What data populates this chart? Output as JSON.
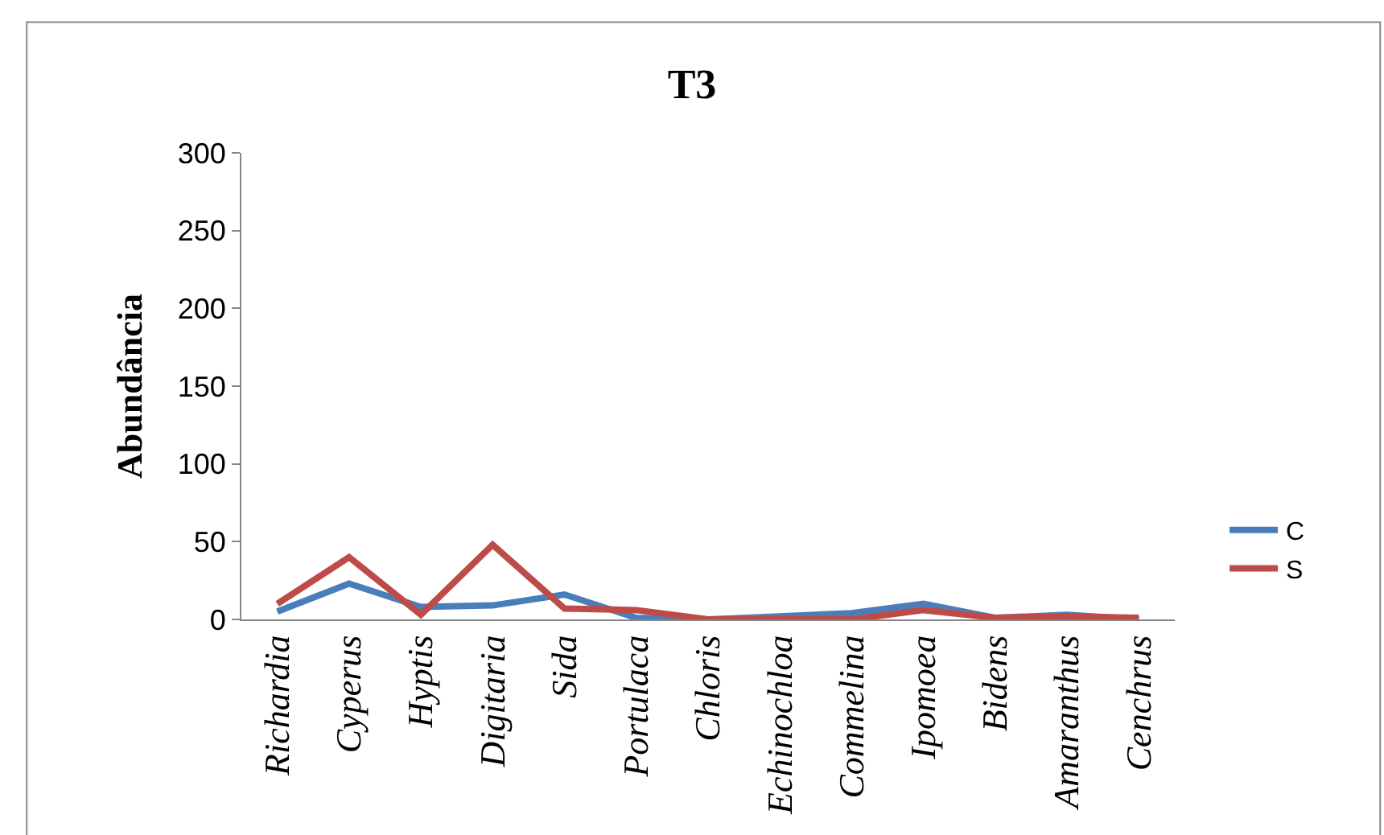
{
  "chart_data": {
    "type": "line",
    "title": "T3",
    "ylabel": "Abundância",
    "categories": [
      "Richardia",
      "Cyperus",
      "Hyptis",
      "Digitaria",
      "Sida",
      "Portulaca",
      "Chloris",
      "Echinochloa",
      "Commelina",
      "Ipomoea",
      "Bidens",
      "Amaranthus",
      "Cenchrus"
    ],
    "series": [
      {
        "name": "C",
        "color": "#4a7ebb",
        "values": [
          5,
          23,
          8,
          9,
          16,
          1,
          0,
          2,
          4,
          10,
          1,
          3,
          0
        ]
      },
      {
        "name": "S",
        "color": "#be4b48",
        "values": [
          10,
          40,
          3,
          48,
          7,
          6,
          0,
          0,
          0,
          6,
          1,
          2,
          1
        ]
      }
    ],
    "ylim": [
      0,
      300
    ],
    "yticks": [
      0,
      50,
      100,
      150,
      200,
      250,
      300
    ],
    "legend": "right",
    "marker": "none",
    "line_style": "solid"
  }
}
